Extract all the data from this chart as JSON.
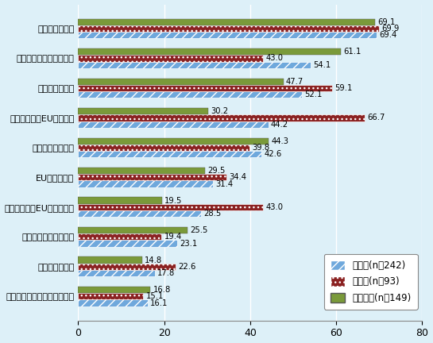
{
  "categories": [
    "英国経済の不振",
    "英国の規制・法制の変更",
    "ポンド安の進行",
    "英国拠点からEUへの輸出",
    "英国での人材確保",
    "EU経済の不振",
    "英国拠点でのEUからの輸入",
    "英国の投資環境の変化",
    "ユーロ安の進行",
    "英国拠点での日本からの輸入"
  ],
  "all_industries": [
    69.4,
    54.1,
    52.1,
    44.2,
    42.6,
    31.4,
    28.5,
    23.1,
    17.8,
    16.1
  ],
  "manufacturing": [
    69.9,
    43.0,
    59.1,
    66.7,
    39.8,
    34.4,
    43.0,
    19.4,
    22.6,
    15.1
  ],
  "non_manufacturing": [
    69.1,
    61.1,
    47.7,
    30.2,
    44.3,
    29.5,
    19.5,
    25.5,
    14.8,
    16.8
  ],
  "color_all": "#6FA8DC",
  "color_mfg": "#8B2222",
  "color_non_mfg": "#7A9A3A",
  "hatch_all": "///",
  "hatch_mfg": "...",
  "hatch_non": "",
  "legend_labels": [
    "全業種(n＝242)",
    "製造業(n＝93)",
    "非製造業(n＝149)"
  ],
  "xlim": [
    0,
    80
  ],
  "xticks": [
    0,
    20,
    40,
    60,
    80
  ],
  "background_color": "#DDF0F8",
  "bar_height": 0.22,
  "fontsize_label": 8.0,
  "fontsize_value": 7.2,
  "fontsize_legend": 8.5,
  "fontsize_tick": 9.0
}
